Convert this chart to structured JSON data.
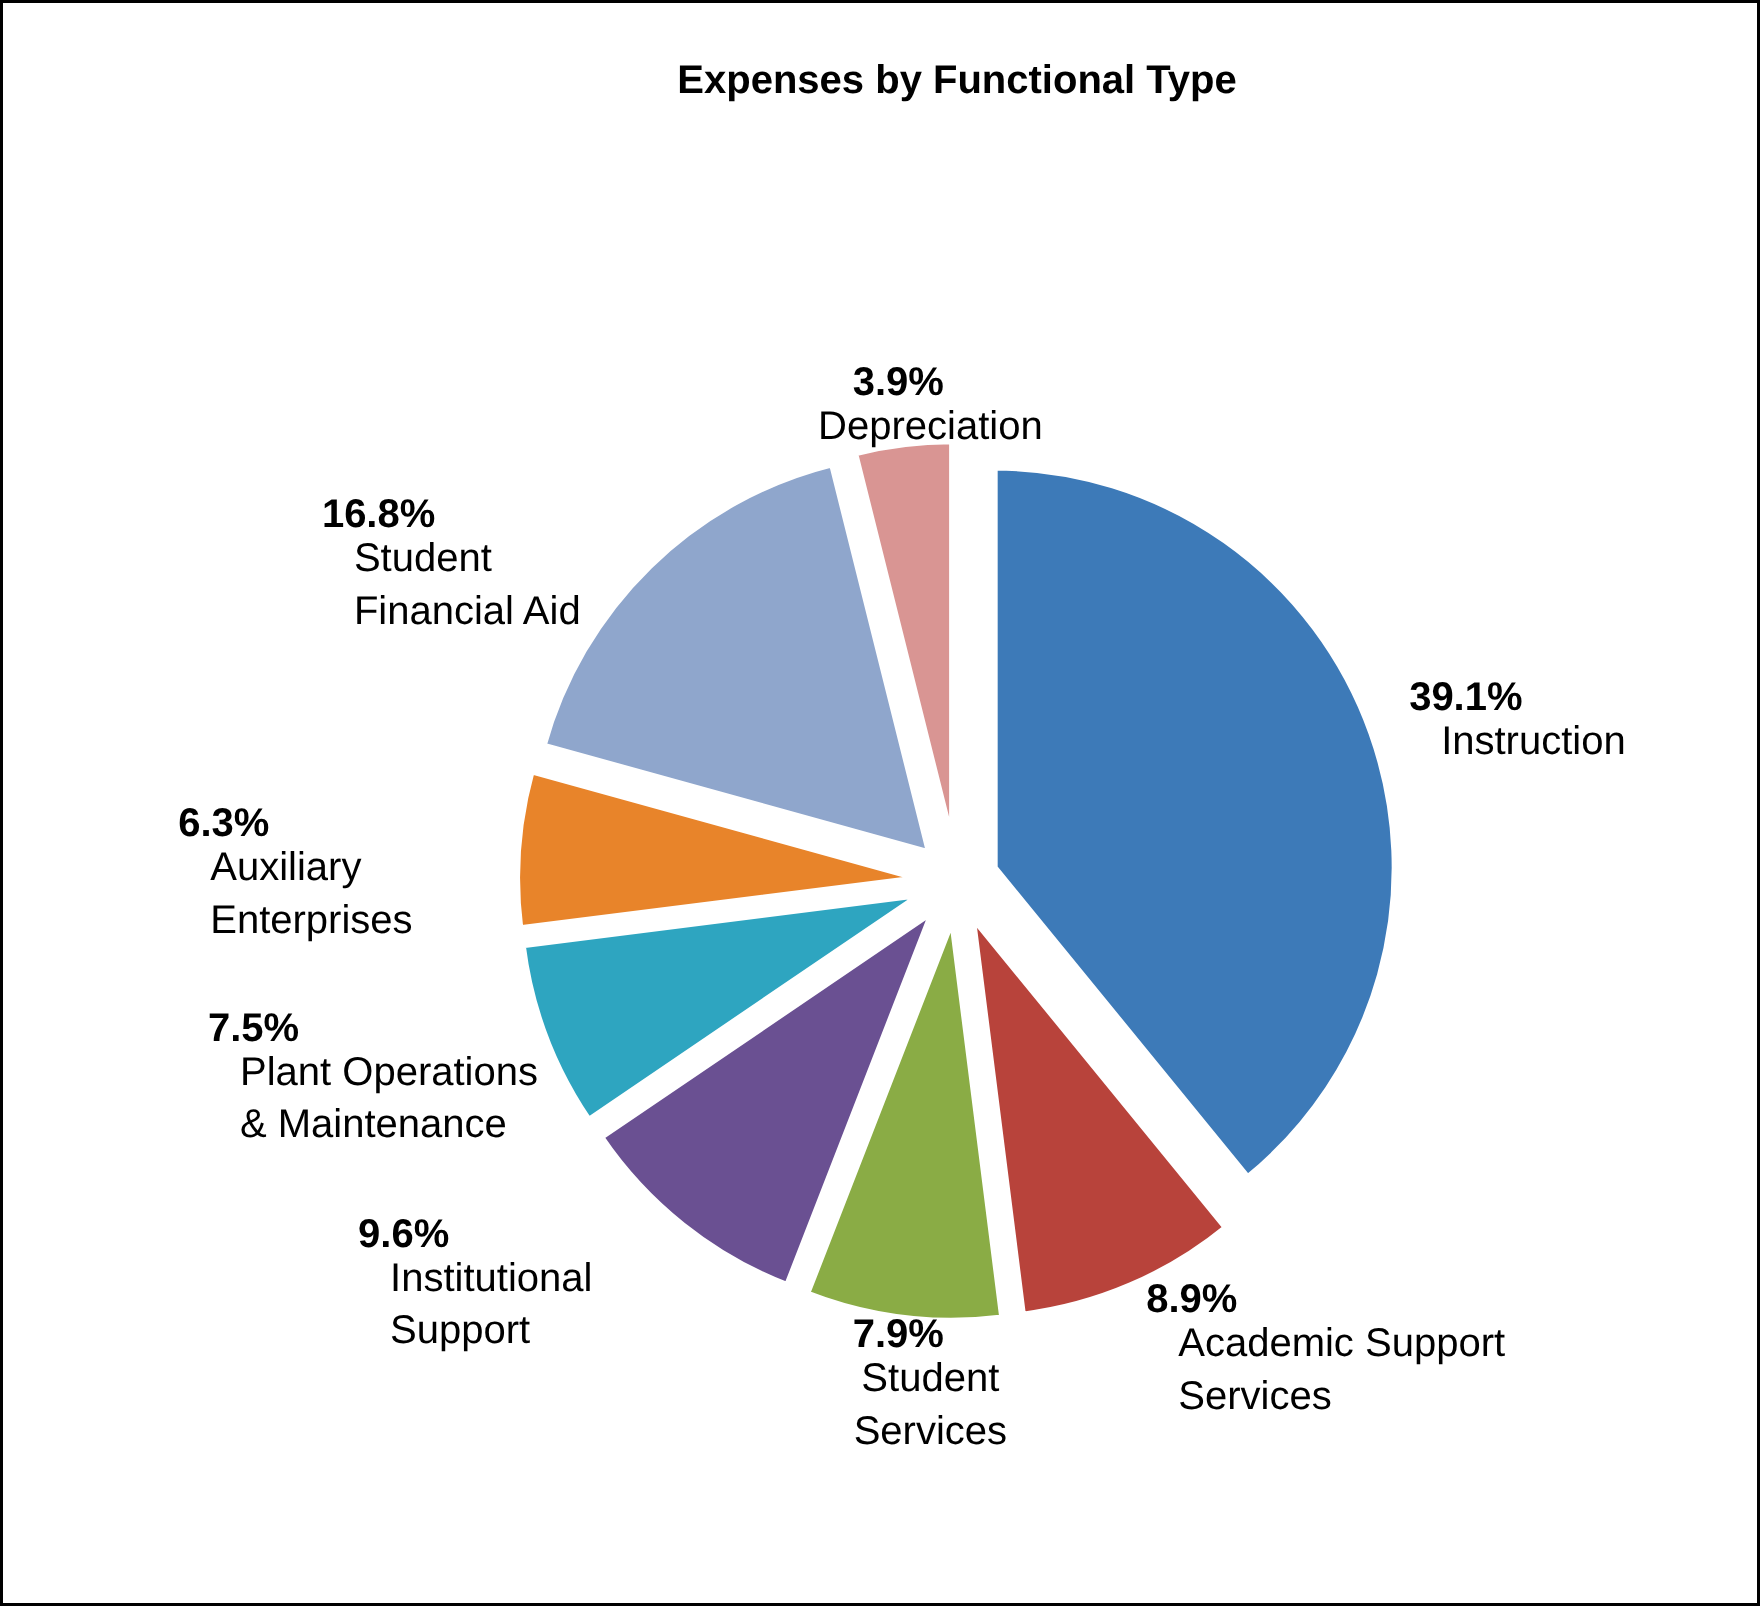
{
  "chart_data": {
    "type": "pie",
    "title": "Expenses by Functional Type",
    "categories": [
      "Instruction",
      "Academic Support\nServices",
      "Student\nServices",
      "Institutional\nSupport",
      "Plant Operations\n& Maintenance",
      "Auxiliary\nEnterprises",
      "Student\n Financial Aid",
      "Depreciation"
    ],
    "values": [
      39.1,
      8.9,
      7.9,
      9.6,
      7.5,
      6.3,
      16.8,
      3.9
    ],
    "value_labels": [
      "39.1%",
      "8.9%",
      "7.9%",
      "9.6%",
      "7.5%",
      "6.3%",
      "16.8%",
      "3.9%"
    ],
    "colors": [
      "#3d7ab8",
      "#b8433b",
      "#8aac45",
      "#6a5092",
      "#2ea5c0",
      "#e8842a",
      "#8fa6cc",
      "#d99593"
    ],
    "legend": false
  }
}
